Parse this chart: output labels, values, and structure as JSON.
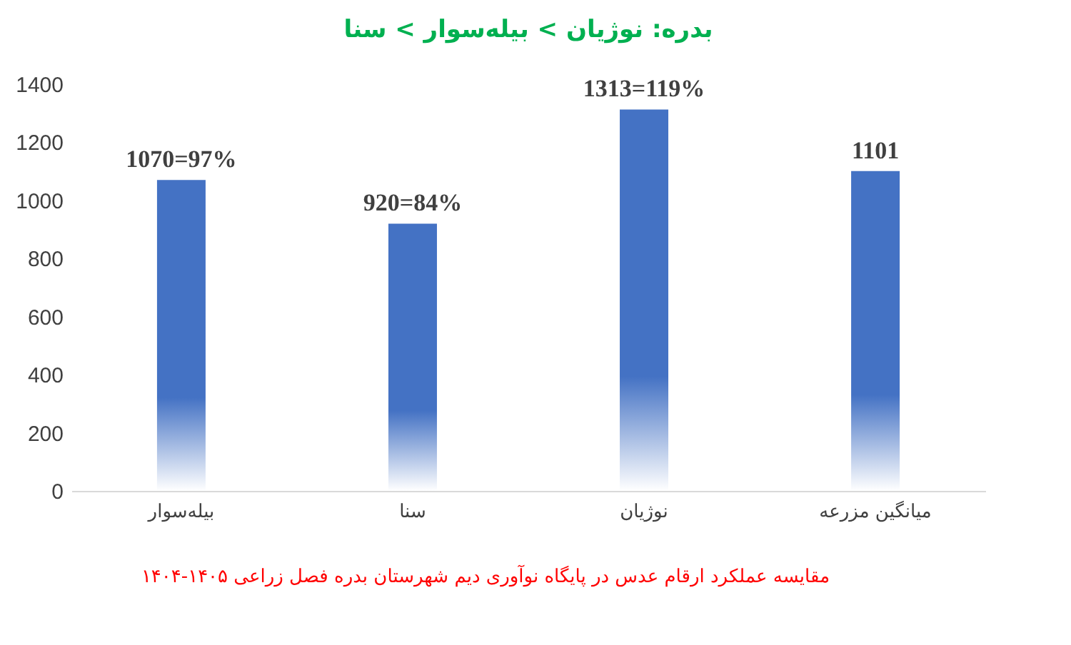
{
  "chart_data": {
    "type": "bar",
    "title": "بدره: نوژیان > بیله‌سوار > سنا",
    "categories": [
      "بیله‌سوار",
      "سنا",
      "نوژیان",
      "میانگین مزرعه"
    ],
    "values": [
      1070,
      920,
      1313,
      1101
    ],
    "value_labels": [
      "1070=97%",
      "920=84%",
      "1313=119%",
      "1101"
    ],
    "color": "#4472c4",
    "ylim": [
      0,
      1400
    ],
    "yticks": [
      0,
      200,
      400,
      600,
      800,
      1000,
      1200,
      1400
    ],
    "grid": false,
    "annotations": [
      "مقایسه عملکرد ارقام عدس در پایگاه نوآوری دیم شهرستان بدره فصل زراعی ۱۴۰۵-۱۴۰۴"
    ]
  }
}
